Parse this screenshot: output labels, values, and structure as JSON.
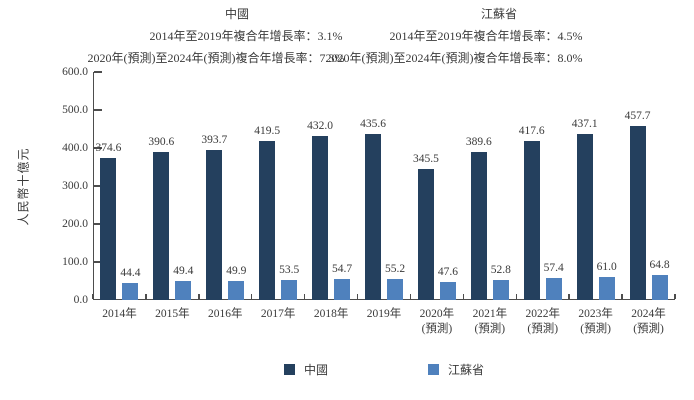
{
  "header": {
    "china": {
      "title": "中國",
      "cagr_hist": "2014年至2019年複合年增長率：3.1%",
      "cagr_forecast": "2020年(預測)至2024年(預測)複合年增長率：7.3%"
    },
    "jiangsu": {
      "title": "江蘇省",
      "cagr_hist": "2014年至2019年複合年增長率：4.5%",
      "cagr_forecast": "2020年(預測)至2024年(預測)複合年增長率：8.0%"
    }
  },
  "chart_data": {
    "type": "bar",
    "title": "",
    "ylabel": "人民幣十億元",
    "ylim": [
      0,
      600
    ],
    "ytick_step": 100,
    "grid": false,
    "legend_position": "bottom",
    "categories": [
      [
        "2014年"
      ],
      [
        "2015年"
      ],
      [
        "2016年"
      ],
      [
        "2017年"
      ],
      [
        "2018年"
      ],
      [
        "2019年"
      ],
      [
        "2020年",
        "(預測)"
      ],
      [
        "2021年",
        "(預測)"
      ],
      [
        "2022年",
        "(預測)"
      ],
      [
        "2023年",
        "(預測)"
      ],
      [
        "2024年",
        "(預測)"
      ]
    ],
    "series": [
      {
        "name": "中國",
        "color": "#24405e",
        "values": [
          374.6,
          390.6,
          393.7,
          419.5,
          432.0,
          435.6,
          345.5,
          389.6,
          417.6,
          437.1,
          457.7
        ]
      },
      {
        "name": "江蘇省",
        "color": "#4f81bd",
        "values": [
          44.4,
          49.4,
          49.9,
          53.5,
          54.7,
          55.2,
          47.6,
          52.8,
          57.4,
          61.0,
          64.8
        ]
      }
    ],
    "colors": {
      "axis": "#4d4d4d",
      "text": "#3a3a3a",
      "background": "#ffffff"
    }
  }
}
